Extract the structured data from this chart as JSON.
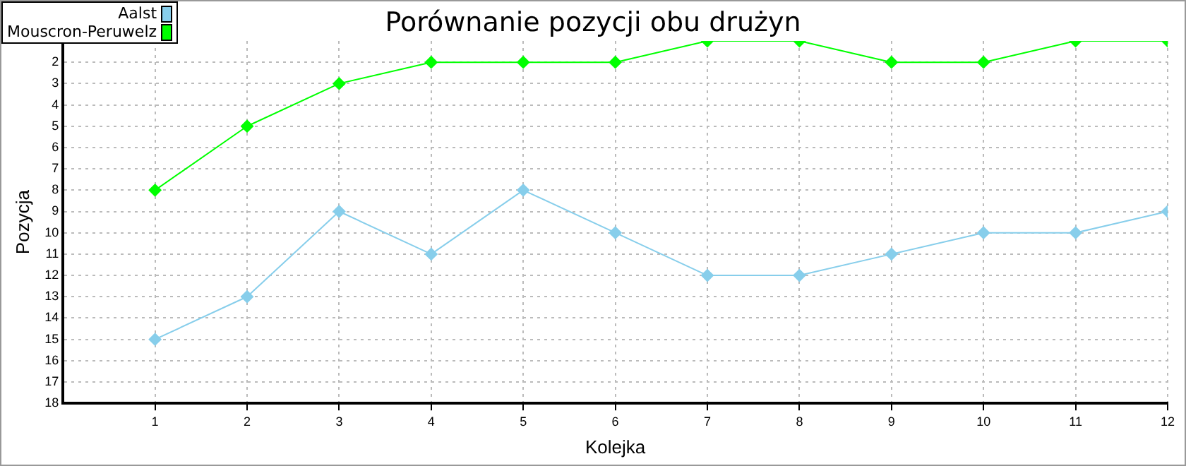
{
  "chart_data": {
    "type": "line",
    "title": "Porównanie pozycji obu drużyn",
    "xlabel": "Kolejka",
    "ylabel": "Pozycja",
    "x": [
      1,
      2,
      3,
      4,
      5,
      6,
      7,
      8,
      9,
      10,
      11,
      12
    ],
    "series": [
      {
        "name": "Aalst",
        "color": "#87ceeb",
        "values": [
          15,
          13,
          9,
          11,
          8,
          10,
          12,
          12,
          11,
          10,
          10,
          9
        ]
      },
      {
        "name": "Mouscron-Peruwelz",
        "color": "#00ff00",
        "values": [
          8,
          5,
          3,
          2,
          2,
          2,
          1,
          1,
          2,
          2,
          1,
          1
        ]
      }
    ],
    "xlim": [
      0,
      12
    ],
    "xticks": [
      1,
      2,
      3,
      4,
      5,
      6,
      7,
      8,
      9,
      10,
      11,
      12
    ],
    "ylim": [
      18,
      1
    ],
    "yticks": [
      2,
      3,
      4,
      5,
      6,
      7,
      8,
      9,
      10,
      11,
      12,
      13,
      14,
      15,
      16,
      17,
      18
    ],
    "grid": true,
    "legend": "top left",
    "marker": "diamond",
    "line_style": "solid"
  }
}
